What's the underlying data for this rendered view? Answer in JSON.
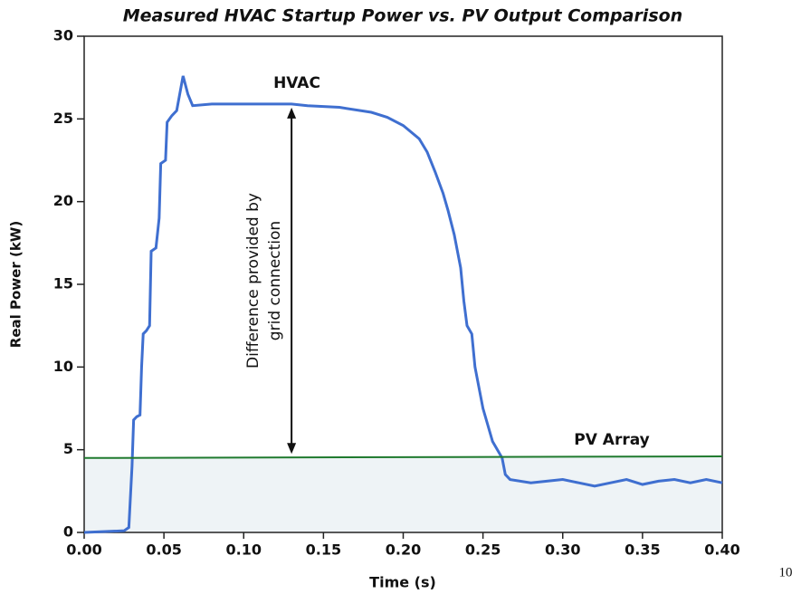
{
  "chart_data": {
    "type": "line",
    "title": "Measured HVAC Startup Power vs. PV Output Comparison",
    "x_label": "Time (s)",
    "y_label": "Real Power (kW)",
    "xlim": [
      0,
      0.4
    ],
    "ylim": [
      0,
      30
    ],
    "xticks": [
      {
        "value": 0,
        "label": "0.00"
      },
      {
        "value": 0.05,
        "label": "0.05"
      },
      {
        "value": 0.1,
        "label": "0.10"
      },
      {
        "value": 0.15,
        "label": "0.15"
      },
      {
        "value": 0.2,
        "label": "0.20"
      },
      {
        "value": 0.25,
        "label": "0.25"
      },
      {
        "value": 0.3,
        "label": "0.30"
      },
      {
        "value": 0.35,
        "label": "0.35"
      },
      {
        "value": 0.4,
        "label": "0.40"
      }
    ],
    "yticks": [
      0,
      5,
      10,
      15,
      20,
      25,
      30
    ],
    "grid": false,
    "series": [
      {
        "name": "HVAC",
        "color": "#3f6fd0",
        "x": [
          0,
          0.025,
          0.028,
          0.03,
          0.031,
          0.033,
          0.035,
          0.036,
          0.037,
          0.039,
          0.041,
          0.042,
          0.045,
          0.047,
          0.048,
          0.051,
          0.052,
          0.055,
          0.058,
          0.062,
          0.065,
          0.068,
          0.08,
          0.1,
          0.12,
          0.13,
          0.14,
          0.16,
          0.18,
          0.19,
          0.2,
          0.21,
          0.215,
          0.22,
          0.225,
          0.228,
          0.232,
          0.236,
          0.238,
          0.24,
          0.243,
          0.245,
          0.248,
          0.25,
          0.253,
          0.256,
          0.259,
          0.262,
          0.264,
          0.267,
          0.28,
          0.29,
          0.3,
          0.31,
          0.32,
          0.33,
          0.34,
          0.35,
          0.36,
          0.37,
          0.38,
          0.39,
          0.4
        ],
        "values": [
          0,
          0.1,
          0.3,
          4,
          6.8,
          7,
          7.1,
          10,
          12,
          12.2,
          12.5,
          17,
          17.2,
          19,
          22.3,
          22.5,
          24.8,
          25.2,
          25.5,
          27.6,
          26.5,
          25.8,
          25.9,
          25.9,
          25.9,
          25.9,
          25.8,
          25.7,
          25.4,
          25.1,
          24.6,
          23.8,
          23,
          21.8,
          20.5,
          19.5,
          18,
          16,
          14,
          12.5,
          12,
          10,
          8.5,
          7.5,
          6.5,
          5.5,
          5,
          4.5,
          3.5,
          3.2,
          3,
          3.1,
          3.2,
          3,
          2.8,
          3,
          3.2,
          2.9,
          3.1,
          3.2,
          3,
          3.2,
          3
        ]
      },
      {
        "name": "PV Array",
        "color": "#1f7a2e",
        "x": [
          0,
          0.4
        ],
        "values": [
          4.5,
          4.6
        ]
      }
    ],
    "annotation": [
      "Difference provided by",
      "grid connection"
    ]
  },
  "page_number": "10"
}
